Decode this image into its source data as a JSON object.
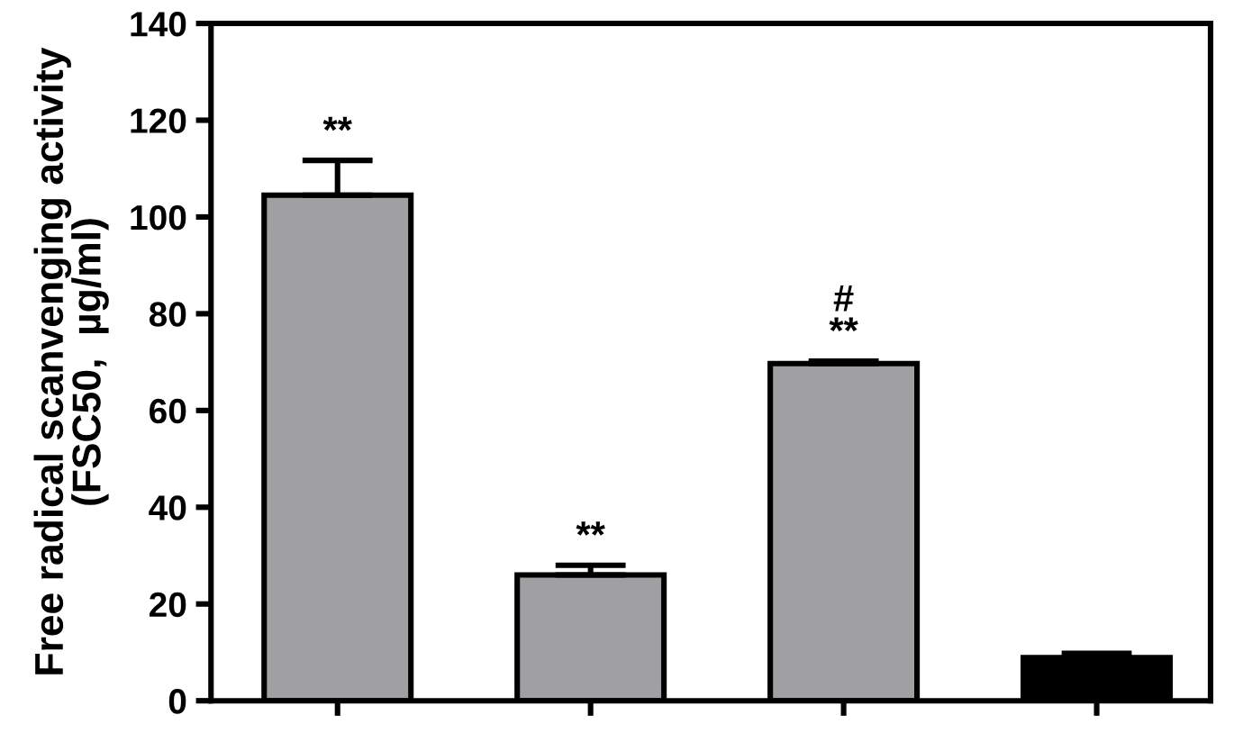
{
  "chart_data": {
    "type": "bar",
    "ylabel": "Free radical scanvenging activity\n(FSC50,  µg/ml)",
    "categories": [
      null,
      null,
      null,
      null
    ],
    "values": [
      104.5,
      26,
      69.7,
      8.9
    ],
    "errors": [
      [
        104.5,
        111.7
      ],
      [
        26,
        28
      ],
      [
        69.7,
        70.2
      ],
      [
        8.9,
        9.8
      ]
    ],
    "colors": [
      "#a0a0a3",
      "#a0a0a3",
      "#a0a0a3",
      "#000000"
    ],
    "ylim": [
      0,
      140
    ],
    "yticks": [
      0,
      20,
      40,
      60,
      80,
      100,
      120,
      140
    ],
    "annotations": [
      "**",
      "**",
      "#\n**"
    ],
    "grid": false
  }
}
